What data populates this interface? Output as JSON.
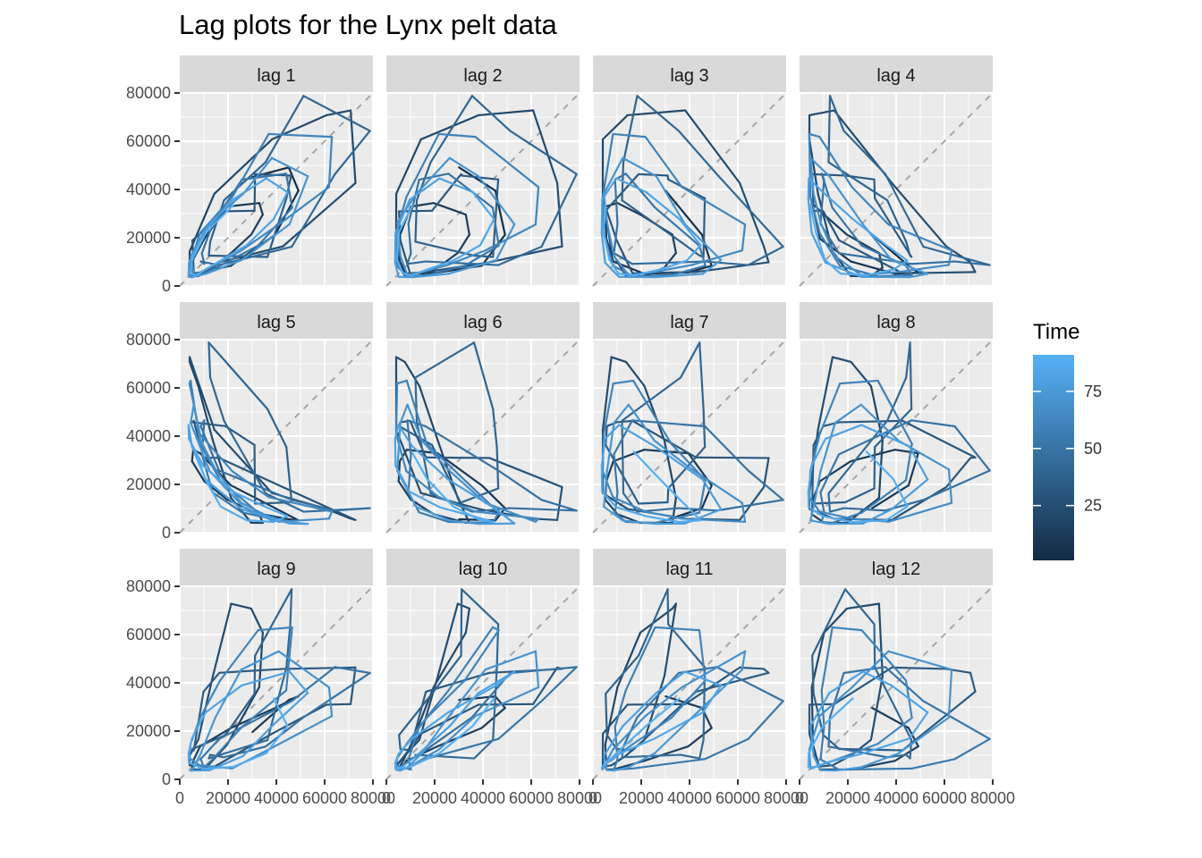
{
  "chart_data": {
    "type": "line",
    "title": "Lag plots for the Lynx pelt data",
    "facets": [
      "lag 1",
      "lag 2",
      "lag 3",
      "lag 4",
      "lag 5",
      "lag 6",
      "lag 7",
      "lag 8",
      "lag 9",
      "lag 10",
      "lag 11",
      "lag 12"
    ],
    "x_ticks": [
      "0",
      "20000",
      "40000",
      "60000",
      "80000"
    ],
    "y_ticks": [
      "0",
      "20000",
      "40000",
      "60000",
      "80000"
    ],
    "xlim": [
      0,
      80000
    ],
    "ylim": [
      0,
      80000
    ],
    "grid": true,
    "reference_line": "y = x (dashed grey)",
    "legend": {
      "title": "Time",
      "type": "continuous",
      "labels": [
        "25",
        "50",
        "75"
      ],
      "range": [
        1,
        91
      ],
      "low_color": "#132B43",
      "high_color": "#56B1F7",
      "position": "right"
    },
    "series": [
      {
        "t": 1,
        "value": 30090
      },
      {
        "t": 2,
        "value": 45150
      },
      {
        "t": 3,
        "value": 49150
      },
      {
        "t": 4,
        "value": 39520
      },
      {
        "t": 5,
        "value": 21230
      },
      {
        "t": 6,
        "value": 8420
      },
      {
        "t": 7,
        "value": 5560
      },
      {
        "t": 8,
        "value": 5080
      },
      {
        "t": 9,
        "value": 10170
      },
      {
        "t": 10,
        "value": 19600
      },
      {
        "t": 11,
        "value": 32910
      },
      {
        "t": 12,
        "value": 34380
      },
      {
        "t": 13,
        "value": 29590
      },
      {
        "t": 14,
        "value": 21300
      },
      {
        "t": 15,
        "value": 13690
      },
      {
        "t": 16,
        "value": 7650
      },
      {
        "t": 17,
        "value": 4080
      },
      {
        "t": 18,
        "value": 4090
      },
      {
        "t": 19,
        "value": 14330
      },
      {
        "t": 20,
        "value": 38220
      },
      {
        "t": 21,
        "value": 60780
      },
      {
        "t": 22,
        "value": 70770
      },
      {
        "t": 23,
        "value": 72770
      },
      {
        "t": 24,
        "value": 42680
      },
      {
        "t": 25,
        "value": 16390
      },
      {
        "t": 26,
        "value": 9830
      },
      {
        "t": 27,
        "value": 5800
      },
      {
        "t": 28,
        "value": 5260
      },
      {
        "t": 29,
        "value": 18910
      },
      {
        "t": 30,
        "value": 30950
      },
      {
        "t": 31,
        "value": 31180
      },
      {
        "t": 32,
        "value": 46340
      },
      {
        "t": 33,
        "value": 45770
      },
      {
        "t": 34,
        "value": 44150
      },
      {
        "t": 35,
        "value": 36330
      },
      {
        "t": 36,
        "value": 12030
      },
      {
        "t": 37,
        "value": 12600
      },
      {
        "t": 38,
        "value": 18340
      },
      {
        "t": 39,
        "value": 35520
      },
      {
        "t": 40,
        "value": 51260
      },
      {
        "t": 41,
        "value": 78770
      },
      {
        "t": 42,
        "value": 64290
      },
      {
        "t": 43,
        "value": 46390
      },
      {
        "t": 44,
        "value": 16290
      },
      {
        "t": 45,
        "value": 8690
      },
      {
        "t": 46,
        "value": 10170
      },
      {
        "t": 47,
        "value": 9170
      },
      {
        "t": 48,
        "value": 13580
      },
      {
        "t": 49,
        "value": 25740
      },
      {
        "t": 50,
        "value": 44070
      },
      {
        "t": 51,
        "value": 46540
      },
      {
        "t": 52,
        "value": 32450
      },
      {
        "t": 53,
        "value": 16720
      },
      {
        "t": 54,
        "value": 8420
      },
      {
        "t": 55,
        "value": 4480
      },
      {
        "t": 56,
        "value": 4040
      },
      {
        "t": 57,
        "value": 8290
      },
      {
        "t": 58,
        "value": 21720
      },
      {
        "t": 59,
        "value": 36840
      },
      {
        "t": 60,
        "value": 62990
      },
      {
        "t": 61,
        "value": 61810
      },
      {
        "t": 62,
        "value": 40970
      },
      {
        "t": 63,
        "value": 25480
      },
      {
        "t": 64,
        "value": 14730
      },
      {
        "t": 65,
        "value": 8730
      },
      {
        "t": 66,
        "value": 5820
      },
      {
        "t": 67,
        "value": 4520
      },
      {
        "t": 68,
        "value": 12350
      },
      {
        "t": 69,
        "value": 26230
      },
      {
        "t": 70,
        "value": 38130
      },
      {
        "t": 71,
        "value": 53050
      },
      {
        "t": 72,
        "value": 45480
      },
      {
        "t": 73,
        "value": 25590
      },
      {
        "t": 74,
        "value": 10740
      },
      {
        "t": 75,
        "value": 5030
      },
      {
        "t": 76,
        "value": 3640
      },
      {
        "t": 77,
        "value": 3810
      },
      {
        "t": 78,
        "value": 9690
      },
      {
        "t": 79,
        "value": 22040
      },
      {
        "t": 80,
        "value": 35810
      },
      {
        "t": 81,
        "value": 44610
      },
      {
        "t": 82,
        "value": 38900
      },
      {
        "t": 83,
        "value": 27730
      },
      {
        "t": 84,
        "value": 16930
      },
      {
        "t": 85,
        "value": 10550
      },
      {
        "t": 86,
        "value": 6840
      },
      {
        "t": 87,
        "value": 4430
      },
      {
        "t": 88,
        "value": 5140
      },
      {
        "t": 89,
        "value": 10840
      },
      {
        "t": 90,
        "value": 22150
      },
      {
        "t": 91,
        "value": 33540
      }
    ]
  }
}
